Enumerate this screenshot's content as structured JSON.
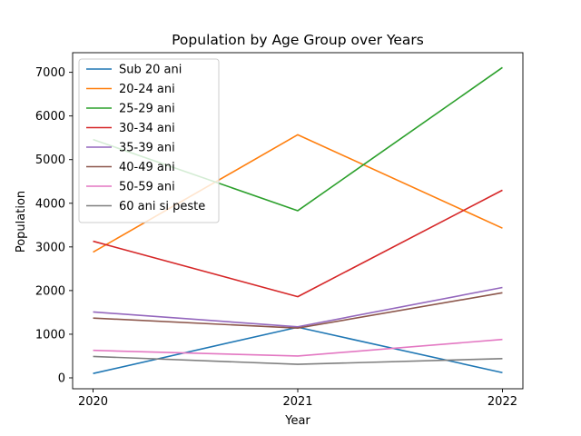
{
  "chart_data": {
    "type": "line",
    "title": "Population by Age Group over Years",
    "xlabel": "Year",
    "ylabel": "Population",
    "x": [
      2020,
      2021,
      2022
    ],
    "x_tick_labels": [
      "2020",
      "2021",
      "2022"
    ],
    "xlim": [
      2019.9,
      2022.1
    ],
    "ylim": [
      -250,
      7450
    ],
    "y_ticks": [
      0,
      1000,
      2000,
      3000,
      4000,
      5000,
      6000,
      7000
    ],
    "y_tick_labels": [
      "0",
      "1000",
      "2000",
      "3000",
      "4000",
      "5000",
      "6000",
      "7000"
    ],
    "grid": false,
    "legend_position": "upper-left",
    "series": [
      {
        "name": "Sub 20 ani",
        "color": "#1f77b4",
        "values": [
          100,
          1160,
          120
        ]
      },
      {
        "name": "20-24 ani",
        "color": "#ff7f0e",
        "values": [
          2880,
          5570,
          3430
        ]
      },
      {
        "name": "25-29 ani",
        "color": "#2ca02c",
        "values": [
          5460,
          3830,
          7110
        ]
      },
      {
        "name": "30-34 ani",
        "color": "#d62728",
        "values": [
          3130,
          1860,
          4300
        ]
      },
      {
        "name": "35-39 ani",
        "color": "#9467bd",
        "values": [
          1510,
          1170,
          2070
        ]
      },
      {
        "name": "40-49 ani",
        "color": "#8c564b",
        "values": [
          1370,
          1140,
          1950
        ]
      },
      {
        "name": "50-59 ani",
        "color": "#e377c2",
        "values": [
          630,
          500,
          880
        ]
      },
      {
        "name": "60 ani si peste",
        "color": "#7f7f7f",
        "values": [
          490,
          310,
          440
        ]
      }
    ]
  }
}
